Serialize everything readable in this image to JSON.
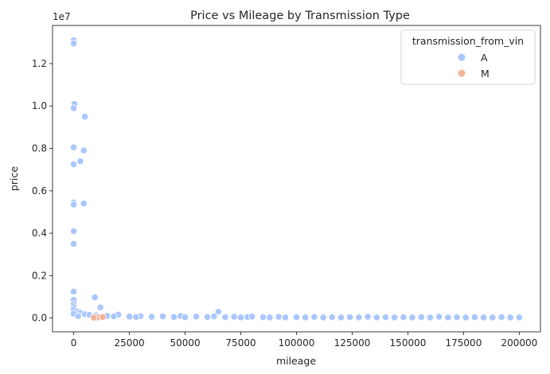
{
  "chart_data": {
    "type": "scatter",
    "title": "Price vs Mileage by Transmission Type",
    "xlabel": "mileage",
    "ylabel": "price",
    "y_offset_text": "1e7",
    "xlim": [
      -9500,
      209500
    ],
    "ylim": [
      -650000,
      13800000
    ],
    "x_ticks": [
      0,
      25000,
      50000,
      75000,
      100000,
      125000,
      150000,
      175000,
      200000
    ],
    "x_tick_labels": [
      "0",
      "25000",
      "50000",
      "75000",
      "100000",
      "125000",
      "150000",
      "175000",
      "200000"
    ],
    "y_ticks": [
      0,
      2000000,
      4000000,
      6000000,
      8000000,
      10000000,
      12000000
    ],
    "y_tick_labels": [
      "0.0",
      "0.2",
      "0.4",
      "0.6",
      "0.8",
      "1.0",
      "1.2"
    ],
    "grid": false,
    "legend": {
      "title": "transmission_from_vin",
      "placement": "top-right",
      "entries": [
        {
          "label": "A",
          "color": "#aac7fd"
        },
        {
          "label": "M",
          "color": "#f2b59a"
        }
      ]
    },
    "series": [
      {
        "name": "A",
        "color": "#aac7fd",
        "points": [
          [
            0,
            13100000
          ],
          [
            0,
            12950000
          ],
          [
            300,
            10100000
          ],
          [
            0,
            9900000
          ],
          [
            5000,
            9500000
          ],
          [
            0,
            8050000
          ],
          [
            4500,
            7900000
          ],
          [
            3000,
            7400000
          ],
          [
            0,
            7250000
          ],
          [
            0,
            5450000
          ],
          [
            0,
            5350000
          ],
          [
            4500,
            5400000
          ],
          [
            0,
            4100000
          ],
          [
            0,
            3500000
          ],
          [
            0,
            1250000
          ],
          [
            9500,
            980000
          ],
          [
            0,
            850000
          ],
          [
            0,
            650000
          ],
          [
            0,
            520000
          ],
          [
            12000,
            500000
          ],
          [
            0,
            400000
          ],
          [
            1500,
            300000
          ],
          [
            3000,
            250000
          ],
          [
            0,
            200000
          ],
          [
            5000,
            180000
          ],
          [
            7000,
            150000
          ],
          [
            10000,
            120000
          ],
          [
            15000,
            100000
          ],
          [
            2000,
            90000
          ],
          [
            20000,
            160000
          ],
          [
            18000,
            80000
          ],
          [
            25000,
            70000
          ],
          [
            30000,
            90000
          ],
          [
            28000,
            50000
          ],
          [
            35000,
            60000
          ],
          [
            40000,
            80000
          ],
          [
            45000,
            50000
          ],
          [
            48000,
            100000
          ],
          [
            50000,
            40000
          ],
          [
            55000,
            70000
          ],
          [
            60000,
            50000
          ],
          [
            65000,
            300000
          ],
          [
            63000,
            80000
          ],
          [
            68000,
            40000
          ],
          [
            72000,
            60000
          ],
          [
            75000,
            30000
          ],
          [
            78000,
            50000
          ],
          [
            80000,
            70000
          ],
          [
            85000,
            40000
          ],
          [
            88000,
            30000
          ],
          [
            92000,
            60000
          ],
          [
            95000,
            30000
          ],
          [
            100000,
            40000
          ],
          [
            104000,
            30000
          ],
          [
            108000,
            50000
          ],
          [
            112000,
            30000
          ],
          [
            116000,
            40000
          ],
          [
            120000,
            30000
          ],
          [
            124000,
            40000
          ],
          [
            128000,
            30000
          ],
          [
            132000,
            60000
          ],
          [
            136000,
            30000
          ],
          [
            140000,
            40000
          ],
          [
            144000,
            30000
          ],
          [
            148000,
            40000
          ],
          [
            152000,
            30000
          ],
          [
            156000,
            40000
          ],
          [
            160000,
            30000
          ],
          [
            164000,
            60000
          ],
          [
            168000,
            30000
          ],
          [
            172000,
            40000
          ],
          [
            176000,
            30000
          ],
          [
            180000,
            40000
          ],
          [
            184000,
            30000
          ],
          [
            188000,
            30000
          ],
          [
            192000,
            40000
          ],
          [
            196000,
            30000
          ],
          [
            200000,
            30000
          ]
        ]
      },
      {
        "name": "M",
        "color": "#f2b59a",
        "points": [
          [
            11000,
            30000
          ],
          [
            13000,
            50000
          ],
          [
            9000,
            20000
          ]
        ]
      }
    ]
  }
}
